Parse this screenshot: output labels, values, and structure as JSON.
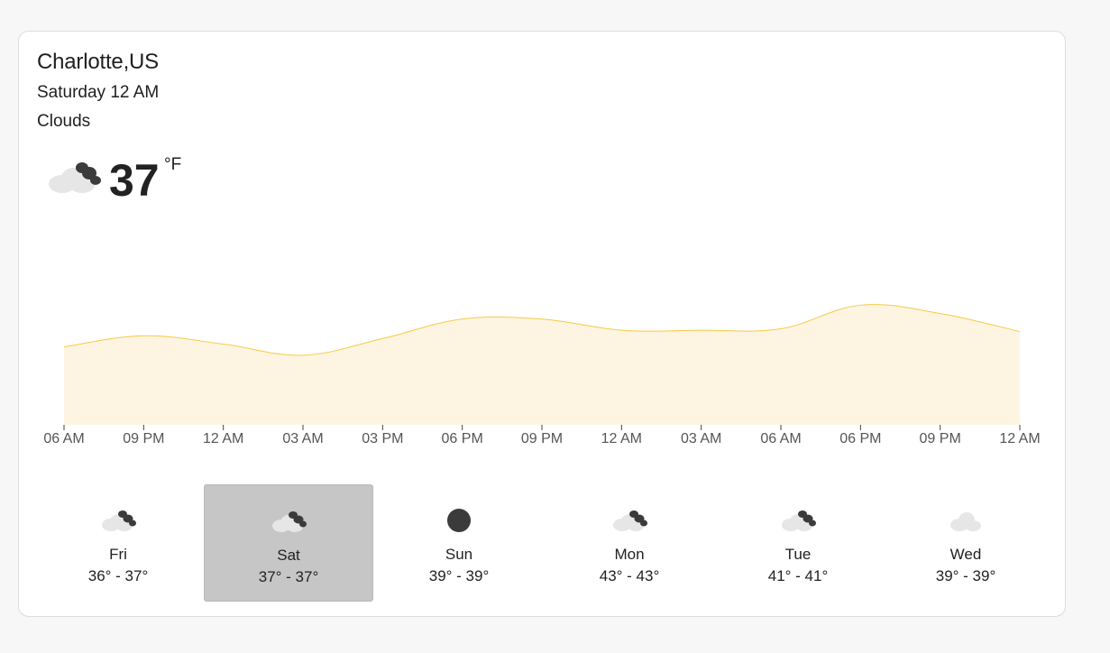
{
  "location": {
    "city": "Charlotte,US",
    "datetime": "Saturday 12 AM",
    "condition": "Clouds"
  },
  "current": {
    "temperature": "37",
    "unit": "°F",
    "icon": "broken-clouds-icon"
  },
  "colors": {
    "chart_line": "#f6c945",
    "chart_fill": "#fdf5e2",
    "active_day_bg": "#c6c6c6",
    "cloud_light": "#e6e6e6",
    "cloud_dark": "#3b3b3b"
  },
  "chart_data": {
    "type": "area",
    "x": [
      "06 AM",
      "09 PM",
      "12 AM",
      "03 AM",
      "03 PM",
      "06 PM",
      "09 PM",
      "12 AM",
      "03 AM",
      "06 AM",
      "06 PM",
      "09 PM",
      "12 AM"
    ],
    "values": [
      36.6,
      37.4,
      36.8,
      36.0,
      37.2,
      38.6,
      38.6,
      37.8,
      37.8,
      37.9,
      39.6,
      39.0,
      37.7
    ],
    "ylim": [
      31,
      45
    ],
    "grid": false
  },
  "forecast": [
    {
      "day": "Fri",
      "range": "36° - 37°",
      "icon": "broken-clouds-icon",
      "active": false
    },
    {
      "day": "Sat",
      "range": "37° - 37°",
      "icon": "broken-clouds-icon",
      "active": true
    },
    {
      "day": "Sun",
      "range": "39° - 39°",
      "icon": "overcast-icon",
      "active": false
    },
    {
      "day": "Mon",
      "range": "43° - 43°",
      "icon": "broken-clouds-icon",
      "active": false
    },
    {
      "day": "Tue",
      "range": "41° - 41°",
      "icon": "broken-clouds-icon",
      "active": false
    },
    {
      "day": "Wed",
      "range": "39° - 39°",
      "icon": "few-clouds-icon",
      "active": false
    }
  ]
}
